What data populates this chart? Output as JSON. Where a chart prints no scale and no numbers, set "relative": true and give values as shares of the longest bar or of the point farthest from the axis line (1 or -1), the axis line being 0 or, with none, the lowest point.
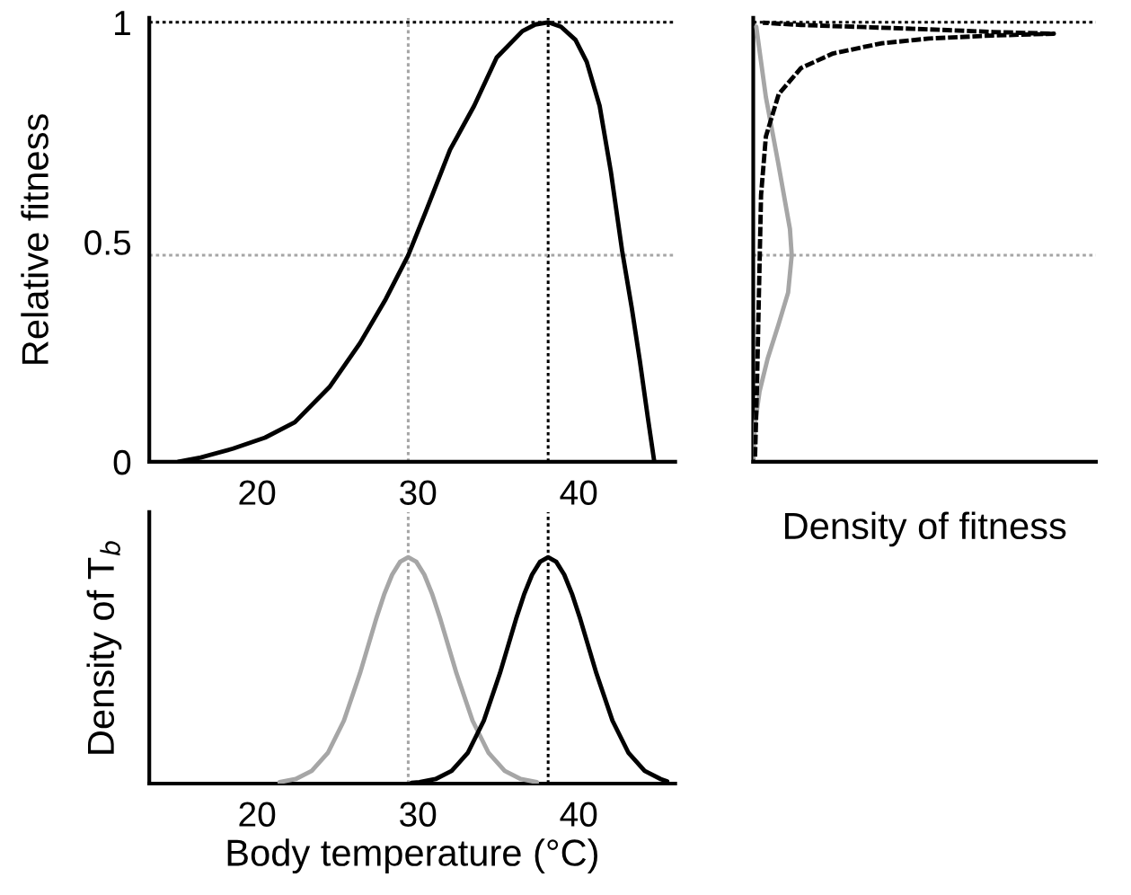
{
  "chart_data": [
    {
      "type": "line",
      "ylabel": "Relative fitness",
      "xlim": [
        13.3,
        46.0
      ],
      "xticks": [
        20,
        30,
        40
      ],
      "ylim": [
        0,
        1.01
      ],
      "yticks": [
        0,
        0.5,
        1
      ],
      "grid": false,
      "marker": "none",
      "line_style": "solid",
      "series": [
        {
          "color": "#000000",
          "x": [
            15.1,
            16.5,
            18.5,
            20.5,
            22.35,
            24.5,
            26.4,
            28.0,
            29.4,
            30.5,
            32.0,
            33.5,
            34.9,
            36.5,
            37.3,
            38.1,
            38.9,
            39.8,
            40.5,
            41.3,
            42.0,
            42.7,
            43.3,
            43.8,
            44.3,
            44.7
          ],
          "values": [
            0,
            0.01,
            0.03,
            0.055,
            0.09,
            0.17,
            0.27,
            0.37,
            0.47,
            0.57,
            0.71,
            0.81,
            0.92,
            0.98,
            0.995,
            1.0,
            0.99,
            0.96,
            0.91,
            0.81,
            0.66,
            0.48,
            0.35,
            0.23,
            0.1,
            0
          ]
        }
      ],
      "ref_lines": [
        {
          "axis": "x",
          "value": 29.4,
          "color": "#a6a6a6",
          "line_style": "dotted"
        },
        {
          "axis": "x",
          "value": 38.1,
          "color": "#000000",
          "line_style": "dotted"
        },
        {
          "axis": "y",
          "value": 0.47,
          "color": "#a6a6a6",
          "line_style": "dotted"
        },
        {
          "axis": "y",
          "value": 1.0,
          "color": "#000000",
          "line_style": "dotted"
        }
      ]
    },
    {
      "type": "line",
      "xlabel": "Body temperature (°C)",
      "ylabel": "Density of T$_{b}$",
      "xlim": [
        13.3,
        46.0
      ],
      "xticks": [
        20,
        30,
        40
      ],
      "relative": true,
      "tick_labels": "x",
      "grid": false,
      "marker": "none",
      "line_style": "solid",
      "series": [
        {
          "color": "#a6a6a6",
          "x": [
            21.4,
            22.4,
            23.4,
            24.4,
            25.4,
            26.4,
            27.4,
            27.9,
            28.4,
            28.9,
            29.4,
            29.9,
            30.4,
            30.9,
            31.4,
            32.4,
            33.4,
            34.4,
            35.4,
            36.4,
            37.4
          ],
          "values": [
            0.006,
            0.02,
            0.056,
            0.135,
            0.278,
            0.487,
            0.726,
            0.835,
            0.923,
            0.98,
            1,
            0.98,
            0.923,
            0.835,
            0.726,
            0.487,
            0.278,
            0.135,
            0.056,
            0.02,
            0.006
          ]
        },
        {
          "color": "#000000",
          "x": [
            29.6,
            30.1,
            31.1,
            32.1,
            33.1,
            34.1,
            35.1,
            36.1,
            36.6,
            37.1,
            37.6,
            38.1,
            38.6,
            39.1,
            39.6,
            40.1,
            41.1,
            42.1,
            43.1,
            44.1,
            45.1,
            45.5
          ],
          "values": [
            0.003,
            0.006,
            0.02,
            0.056,
            0.135,
            0.278,
            0.487,
            0.726,
            0.835,
            0.923,
            0.98,
            1,
            0.98,
            0.923,
            0.835,
            0.726,
            0.487,
            0.278,
            0.135,
            0.056,
            0.02,
            0.01
          ]
        }
      ],
      "ref_lines": [
        {
          "axis": "x",
          "value": 29.4,
          "color": "#a6a6a6",
          "line_style": "dotted"
        },
        {
          "axis": "x",
          "value": 38.1,
          "color": "#000000",
          "line_style": "dotted"
        }
      ]
    },
    {
      "type": "line",
      "xlabel": "Density of fitness",
      "orientation": "horizontal",
      "relative": true,
      "ylim": [
        0,
        1.01
      ],
      "yticks": [
        0,
        0.5,
        1
      ],
      "tick_labels": false,
      "grid": false,
      "marker": "none",
      "series": [
        {
          "color": "#a6a6a6",
          "line_style": "solid",
          "x": [
            0.01,
            0.087,
            0.16,
            0.235,
            0.31,
            0.385,
            0.47,
            0.53,
            0.68,
            0.83,
            0.99
          ],
          "values": [
            0,
            0.006,
            0.021,
            0.048,
            0.083,
            0.116,
            0.128,
            0.122,
            0.083,
            0.042,
            0.01
          ]
        },
        {
          "color": "#000000",
          "line_style": "dashed",
          "x": [
            0.012,
            0.161,
            0.385,
            0.607,
            0.74,
            0.837,
            0.896,
            0.929,
            0.952,
            0.963,
            0.97,
            0.974,
            0.978,
            0.984,
            0.989,
            0.994,
            0.999
          ],
          "values": [
            0.006,
            0.012,
            0.019,
            0.026,
            0.042,
            0.085,
            0.159,
            0.265,
            0.425,
            0.584,
            0.797,
            1.0,
            0.797,
            0.584,
            0.371,
            0.159,
            0.032
          ]
        }
      ],
      "ref_lines": [
        {
          "axis": "y",
          "value": 1.0,
          "color": "#000000",
          "line_style": "dotted"
        },
        {
          "axis": "y",
          "value": 0.47,
          "color": "#a6a6a6",
          "line_style": "dotted"
        }
      ]
    }
  ]
}
